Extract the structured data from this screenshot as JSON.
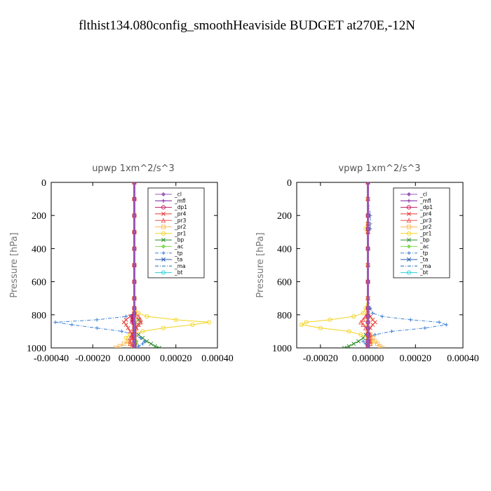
{
  "figure_title": "flthist134.080config_smoothHeaviside  BUDGET at270E,-12N",
  "series_style": [
    {
      "name": "_cl",
      "color": "#9b59b6",
      "marker": "diamond"
    },
    {
      "name": "_mfl",
      "color": "#7b1fa2",
      "marker": "plus"
    },
    {
      "name": "_dp1",
      "color": "#c2185b",
      "marker": "circle"
    },
    {
      "name": "_pr4",
      "color": "#e53935",
      "marker": "x"
    },
    {
      "name": "_pr3",
      "color": "#ef5350",
      "marker": "triangle"
    },
    {
      "name": "_pr2",
      "color": "#ffb74d",
      "marker": "square"
    },
    {
      "name": "_pr1",
      "color": "#f2d31b",
      "marker": "circle"
    },
    {
      "name": "_bp",
      "color": "#2e8b2e",
      "marker": "x"
    },
    {
      "name": "_ac",
      "color": "#7ddc4f",
      "marker": "diamond"
    },
    {
      "name": "_tp",
      "color": "#3a7fd5",
      "marker": "plus"
    },
    {
      "name": "_ta",
      "color": "#2a5db0",
      "marker": "x"
    },
    {
      "name": "_ma",
      "color": "#1a6fb5",
      "marker": "none"
    },
    {
      "name": "_bt",
      "color": "#29d0d8",
      "marker": "circle"
    }
  ],
  "chart_data": [
    {
      "type": "line",
      "title": "upwp   1xm^2/s^3",
      "xlabel": "",
      "ylabel": "Pressure  [hPa]",
      "xlim": [
        -0.0004,
        0.0004
      ],
      "ylim": [
        1000,
        0
      ],
      "xticks": [
        "-0.00040",
        "-0.00020",
        "0.00000",
        "0.00020",
        "0.00040"
      ],
      "yticks": [
        "0",
        "200",
        "400",
        "600",
        "800",
        "1000"
      ],
      "legend": "top-right",
      "grid": false,
      "y": [
        0,
        100,
        200,
        300,
        400,
        500,
        600,
        700,
        760,
        790,
        810,
        830,
        845,
        860,
        880,
        900,
        920,
        940,
        960,
        975,
        990,
        1000
      ],
      "series": [
        {
          "name": "_cl",
          "values": [
            0,
            0,
            0,
            0,
            0,
            0,
            0,
            0,
            0,
            0,
            0,
            0,
            0,
            0,
            0,
            0,
            0,
            0,
            0,
            0,
            0,
            0
          ]
        },
        {
          "name": "_mfl",
          "values": [
            0,
            0,
            0,
            0,
            0,
            0,
            0,
            0,
            0,
            0,
            0,
            0,
            0,
            0,
            0,
            0,
            0,
            0,
            0,
            0,
            0,
            0
          ]
        },
        {
          "name": "_dp1",
          "values": [
            0,
            0,
            0,
            0,
            0,
            0,
            0,
            0,
            0,
            0,
            -1e-05,
            -1e-05,
            -1e-05,
            0,
            0,
            0,
            0,
            0,
            0,
            0,
            0,
            0
          ]
        },
        {
          "name": "_pr4",
          "values": [
            0,
            0,
            0,
            0,
            0,
            0,
            0,
            0,
            0,
            0,
            -2e-05,
            -4e-05,
            -5e-05,
            -4e-05,
            -3e-05,
            -2e-05,
            -1e-05,
            -1e-05,
            0,
            0,
            0,
            0
          ]
        },
        {
          "name": "_pr3",
          "values": [
            0,
            0,
            0,
            0,
            0,
            0,
            0,
            0,
            0,
            0,
            2e-05,
            3e-05,
            3e-05,
            2e-05,
            1e-05,
            0,
            -1e-05,
            -2e-05,
            -2e-05,
            -2e-05,
            -1e-05,
            0
          ]
        },
        {
          "name": "_pr2",
          "values": [
            0,
            0,
            0,
            0,
            0,
            0,
            0,
            0,
            0,
            0,
            0,
            0,
            0,
            0,
            0,
            0,
            0,
            0,
            -3e-05,
            -5e-05,
            -7e-05,
            -9e-05
          ]
        },
        {
          "name": "_pr1",
          "values": [
            0,
            0,
            0,
            0,
            0,
            0,
            0,
            0,
            0,
            2e-05,
            6e-05,
            0.0002,
            0.00036,
            0.00028,
            0.00014,
            4e-05,
            -2e-05,
            -4e-05,
            -3e-05,
            -2e-05,
            -1e-05,
            0
          ]
        },
        {
          "name": "_bp",
          "values": [
            0,
            0,
            0,
            0,
            0,
            0,
            0,
            0,
            0,
            0,
            0,
            2e-05,
            3e-05,
            2e-05,
            1e-05,
            0,
            2e-05,
            4e-05,
            6e-05,
            8e-05,
            0.0001,
            0.00012
          ]
        },
        {
          "name": "_ac",
          "values": [
            0,
            0,
            0,
            0,
            0,
            0,
            0,
            0,
            0,
            0,
            0,
            0,
            0,
            0,
            0,
            0,
            0,
            0,
            1e-05,
            1e-05,
            0,
            0
          ]
        },
        {
          "name": "_tp",
          "values": [
            0,
            0,
            0,
            0,
            0,
            0,
            0,
            0,
            0,
            0,
            -4e-05,
            -0.00018,
            -0.00038,
            -0.0003,
            -0.00018,
            -6e-05,
            0,
            3e-05,
            5e-05,
            4e-05,
            2e-05,
            0
          ]
        },
        {
          "name": "_ta",
          "values": [
            0,
            0,
            0,
            0,
            0,
            0,
            0,
            0,
            0,
            0,
            0,
            0,
            0,
            0,
            0,
            0,
            0,
            0,
            0,
            0,
            0,
            0
          ]
        },
        {
          "name": "_ma",
          "values": [
            0,
            0,
            0,
            0,
            0,
            0,
            0,
            0,
            0,
            0,
            0,
            0,
            0,
            0,
            0,
            0,
            0,
            0,
            0,
            0,
            0,
            0
          ]
        },
        {
          "name": "_bt",
          "values": [
            0,
            0,
            0,
            0,
            0,
            0,
            0,
            0,
            0,
            0,
            0,
            0,
            0,
            0,
            0,
            0,
            0,
            0,
            0,
            0,
            0,
            0
          ]
        }
      ]
    },
    {
      "type": "line",
      "title": "vpwp   1xm^2/s^3",
      "xlabel": "",
      "ylabel": "Pressure  [hPa]",
      "xlim": [
        -0.0003,
        0.0004
      ],
      "ylim": [
        1000,
        0
      ],
      "xticks": [
        "-0.00020",
        "0.00000",
        "0.00020",
        "0.00040"
      ],
      "yticks": [
        "0",
        "200",
        "400",
        "600",
        "800",
        "1000"
      ],
      "legend": "top-right",
      "grid": false,
      "y": [
        0,
        100,
        200,
        250,
        280,
        300,
        400,
        500,
        600,
        700,
        760,
        790,
        810,
        830,
        845,
        860,
        880,
        900,
        920,
        940,
        960,
        975,
        990,
        1000
      ],
      "series": [
        {
          "name": "_cl",
          "values": [
            0,
            0,
            0,
            0,
            0,
            0,
            0,
            0,
            0,
            0,
            0,
            0,
            0,
            0,
            0,
            0,
            0,
            0,
            0,
            0,
            0,
            0,
            0,
            0
          ]
        },
        {
          "name": "_mfl",
          "values": [
            0,
            0,
            0,
            0,
            0,
            0,
            0,
            0,
            0,
            0,
            0,
            0,
            0,
            0,
            0,
            0,
            0,
            0,
            0,
            0,
            0,
            0,
            0,
            0
          ]
        },
        {
          "name": "_dp1",
          "values": [
            0,
            0,
            0,
            0,
            0,
            0,
            0,
            0,
            0,
            0,
            0,
            0,
            0,
            0,
            0,
            0,
            0,
            0,
            0,
            0,
            0,
            0,
            0,
            0
          ]
        },
        {
          "name": "_pr4",
          "values": [
            0,
            0,
            0,
            0,
            0,
            0,
            0,
            0,
            0,
            0,
            0,
            0,
            1e-05,
            2e-05,
            3e-05,
            2e-05,
            1e-05,
            0,
            0,
            0,
            0,
            0,
            0,
            0
          ]
        },
        {
          "name": "_pr3",
          "values": [
            0,
            0,
            0,
            0,
            0,
            0,
            0,
            0,
            0,
            0,
            0,
            0,
            -1e-05,
            -2e-05,
            -3e-05,
            -2e-05,
            -1e-05,
            0,
            1e-05,
            1e-05,
            1e-05,
            1e-05,
            0,
            0
          ]
        },
        {
          "name": "_pr2",
          "values": [
            0,
            0,
            0,
            0,
            0,
            0,
            0,
            0,
            0,
            0,
            0,
            0,
            0,
            0,
            0,
            0,
            0,
            0,
            1e-05,
            2e-05,
            3e-05,
            4e-05,
            5e-05,
            6e-05
          ]
        },
        {
          "name": "_pr1",
          "values": [
            0,
            0,
            0,
            0,
            -1e-05,
            0,
            0,
            0,
            0,
            0,
            -1e-05,
            -2e-05,
            -6e-05,
            -0.00016,
            -0.00026,
            -0.00028,
            -0.0002,
            -8e-05,
            -3e-05,
            0,
            2e-05,
            1e-05,
            0,
            0
          ]
        },
        {
          "name": "_bp",
          "values": [
            0,
            0,
            0,
            0,
            0,
            0,
            0,
            0,
            0,
            0,
            0,
            0,
            0,
            0,
            0,
            0,
            0,
            0,
            -1e-05,
            -2e-05,
            -4e-05,
            -6e-05,
            -8e-05,
            -0.0001
          ]
        },
        {
          "name": "_ac",
          "values": [
            0,
            0,
            0,
            0,
            0,
            0,
            0,
            0,
            0,
            0,
            0,
            0,
            0,
            0,
            0,
            0,
            0,
            0,
            0,
            0,
            0,
            0,
            0,
            0
          ]
        },
        {
          "name": "_tp",
          "values": [
            0,
            0,
            1e-05,
            1e-05,
            1e-05,
            0,
            0,
            0,
            0,
            0,
            1e-05,
            2e-05,
            6e-05,
            0.00018,
            0.0003,
            0.00033,
            0.00024,
            0.0001,
            3e-05,
            0,
            -2e-05,
            -1e-05,
            0,
            0
          ]
        },
        {
          "name": "_ta",
          "values": [
            0,
            0,
            0,
            0,
            0,
            0,
            0,
            0,
            0,
            0,
            0,
            0,
            0,
            0,
            0,
            0,
            0,
            0,
            0,
            0,
            0,
            0,
            0,
            0
          ]
        },
        {
          "name": "_ma",
          "values": [
            0,
            0,
            0,
            0,
            0,
            0,
            0,
            0,
            0,
            0,
            0,
            0,
            0,
            0,
            0,
            0,
            0,
            0,
            0,
            0,
            0,
            0,
            0,
            0
          ]
        },
        {
          "name": "_bt",
          "values": [
            0,
            0,
            0,
            0,
            0,
            0,
            0,
            0,
            0,
            0,
            0,
            0,
            0,
            0,
            0,
            0,
            0,
            0,
            0,
            0,
            0,
            0,
            0,
            0
          ]
        }
      ]
    }
  ]
}
